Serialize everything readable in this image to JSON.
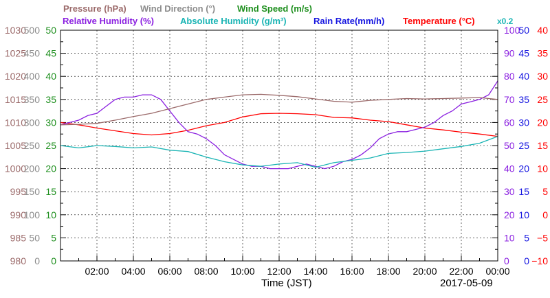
{
  "chart_data": {
    "type": "line",
    "legend": [
      {
        "text": "Pressure (hPa)",
        "color": "#9b6a6a"
      },
      {
        "text": "Wind Direction (°)",
        "color": "#8c8c8c"
      },
      {
        "text": "Wind Speed (m/s)",
        "color": "#1e8f1e"
      },
      {
        "text": "Relative Humidity (%)",
        "color": "#8a1fe0"
      },
      {
        "text": "Absolute Humidity (g/m³)",
        "color": "#19b4b4"
      },
      {
        "text": "Rain Rate(mm/h)",
        "color": "#1515e0"
      },
      {
        "text": "Temperature (°C)",
        "color": "#ff0000"
      }
    ],
    "rain_multiplier": "x0.2",
    "xlabel": "Time (JST)",
    "date": "2017-05-09",
    "x_ticks": [
      "02:00",
      "04:00",
      "06:00",
      "08:00",
      "10:00",
      "12:00",
      "14:00",
      "16:00",
      "18:00",
      "20:00",
      "22:00",
      "00:00"
    ],
    "axes": {
      "pressure": {
        "color": "#9b6a6a",
        "ticks": [
          "980",
          "985",
          "990",
          "995",
          "1000",
          "1005",
          "1010",
          "1015",
          "1020",
          "1025",
          "1030"
        ]
      },
      "wind_direction": {
        "color": "#8c8c8c",
        "ticks": [
          "0",
          "50",
          "100",
          "150",
          "200",
          "250",
          "300",
          "350",
          "400",
          "450",
          "500"
        ]
      },
      "wind_speed": {
        "color": "#1e8f1e",
        "ticks": [
          "0",
          "5",
          "10",
          "15",
          "20",
          "25",
          "30",
          "35",
          "40",
          "45",
          "50"
        ]
      },
      "relative_humidity": {
        "color": "#8a1fe0",
        "ticks": [
          "0",
          "10",
          "20",
          "30",
          "40",
          "50",
          "60",
          "70",
          "80",
          "90",
          "100"
        ]
      },
      "rain_rate": {
        "color": "#1515e0",
        "ticks": [
          "0",
          "5",
          "10",
          "15",
          "20",
          "25",
          "30",
          "35",
          "40",
          "45",
          "50"
        ]
      },
      "temperature": {
        "color": "#ff0000",
        "ticks": [
          "−10",
          "−5",
          "0",
          "5",
          "10",
          "15",
          "20",
          "25",
          "30",
          "35",
          "40"
        ]
      }
    },
    "series": [
      {
        "name": "Temperature (°C)",
        "color": "#ff0000",
        "axis": "temperature",
        "x": [
          0,
          1,
          2,
          3,
          4,
          5,
          6,
          7,
          8,
          9,
          10,
          11,
          12,
          13,
          14,
          15,
          16,
          17,
          18,
          19,
          20,
          21,
          22,
          23,
          24
        ],
        "y": [
          20.0,
          19.5,
          18.8,
          18.2,
          17.6,
          17.3,
          17.6,
          18.3,
          19.3,
          20.0,
          21.2,
          21.9,
          22.0,
          21.9,
          21.7,
          21.1,
          21.0,
          20.5,
          20.2,
          19.5,
          18.8,
          18.4,
          17.9,
          17.5,
          17.0
        ]
      },
      {
        "name": "Relative Humidity (%)",
        "color": "#8a1fe0",
        "axis": "relative_humidity",
        "x": [
          0,
          0.5,
          1,
          1.5,
          2,
          2.5,
          3,
          3.5,
          4,
          4.5,
          5,
          5.5,
          6,
          6.5,
          7,
          7.5,
          8,
          8.5,
          9,
          9.5,
          10,
          10.5,
          11,
          11.5,
          12,
          12.5,
          13,
          13.5,
          14,
          14.5,
          15,
          15.5,
          16,
          16.5,
          17,
          17.5,
          18,
          18.5,
          19,
          19.5,
          20,
          20.5,
          21,
          21.5,
          22,
          22.5,
          23,
          23.5,
          24
        ],
        "y": [
          59,
          60,
          61,
          63,
          64,
          67,
          70,
          71,
          71,
          72,
          72,
          70,
          65,
          60,
          56,
          55,
          53,
          50,
          46,
          44,
          42,
          41,
          41,
          40,
          40,
          40,
          41,
          42,
          41,
          40,
          41,
          43,
          44,
          46,
          49,
          53,
          55,
          56,
          56,
          57,
          58,
          60,
          63,
          65,
          68,
          69,
          70,
          72,
          78
        ]
      },
      {
        "name": "Absolute Humidity (g/m³)",
        "color": "#19b4b4",
        "axis": "wind_speed",
        "x": [
          0,
          1,
          2,
          3,
          4,
          5,
          6,
          7,
          8,
          9,
          10,
          11,
          12,
          13,
          14,
          15,
          16,
          17,
          18,
          19,
          20,
          21,
          22,
          23,
          24
        ],
        "y": [
          25.0,
          24.5,
          25.0,
          24.8,
          24.5,
          24.7,
          24.0,
          23.7,
          22.5,
          21.5,
          20.8,
          20.5,
          21.0,
          21.3,
          20.3,
          21.3,
          21.8,
          22.3,
          23.3,
          23.5,
          23.8,
          24.3,
          24.8,
          25.5,
          27.0
        ]
      },
      {
        "name": "Pressure (hPa)",
        "color": "#9b6a6a",
        "axis": "pressure",
        "x": [
          0,
          1,
          2,
          3,
          4,
          5,
          6,
          7,
          8,
          9,
          10,
          11,
          12,
          13,
          14,
          15,
          16,
          17,
          18,
          19,
          20,
          21,
          22,
          23,
          24
        ],
        "y": [
          1009.5,
          1009.6,
          1009.8,
          1010.5,
          1011.3,
          1012.0,
          1013.0,
          1014.0,
          1015.0,
          1015.5,
          1016.0,
          1016.1,
          1015.9,
          1015.6,
          1015.1,
          1014.6,
          1014.4,
          1014.8,
          1015.0,
          1015.2,
          1015.1,
          1015.2,
          1015.3,
          1015.4,
          1015.0
        ]
      }
    ]
  }
}
